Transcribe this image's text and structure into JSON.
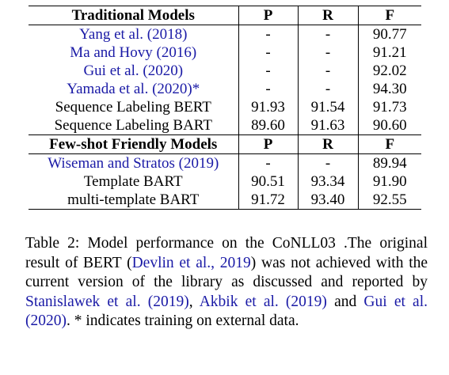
{
  "table": {
    "header1": {
      "model": "Traditional Models",
      "p": "P",
      "r": "R",
      "f": "F"
    },
    "traditional_rows": [
      {
        "model": "Yang et al. (2018)",
        "cite": true,
        "p": "-",
        "r": "-",
        "f": "90.77"
      },
      {
        "model": "Ma and Hovy (2016)",
        "cite": true,
        "p": "-",
        "r": "-",
        "f": "91.21"
      },
      {
        "model": "Gui et al. (2020)",
        "cite": true,
        "p": "-",
        "r": "-",
        "f": "92.02"
      },
      {
        "model": "Yamada et al. (2020)*",
        "cite": true,
        "p": "-",
        "r": "-",
        "f": "94.30"
      },
      {
        "model": "Sequence Labeling BERT",
        "cite": false,
        "p": "91.93",
        "r": "91.54",
        "f": "91.73"
      },
      {
        "model": "Sequence Labeling BART",
        "cite": false,
        "p": "89.60",
        "r": "91.63",
        "f": "90.60"
      }
    ],
    "header2": {
      "model": "Few-shot Friendly Models",
      "p": "P",
      "r": "R",
      "f": "F"
    },
    "fewshot_rows": [
      {
        "model": "Wiseman and Stratos (2019)",
        "cite": true,
        "p": "-",
        "r": "-",
        "f": "89.94"
      },
      {
        "model": "Template BART",
        "cite": false,
        "p": "90.51",
        "r": "93.34",
        "f": "91.90"
      },
      {
        "model": "multi-template BART",
        "cite": false,
        "p": "91.72",
        "r": "93.40",
        "f": "92.55"
      }
    ]
  },
  "caption": {
    "t1": "Table 2:  Model performance on the CoNLL03 .The original result of BERT (",
    "c1": "Devlin et al., 2019",
    "t2": ") was not achieved with the current version of the library as discussed and reported by ",
    "c2": "Stanislawek et al. (2019)",
    "t3": ", ",
    "c3": "Akbik et al. (2019)",
    "t4": " and ",
    "c4": "Gui et al. (2020)",
    "t5": ". * indicates training on external data."
  },
  "colors": {
    "citation": "#1a1aa6",
    "text": "#000000"
  }
}
